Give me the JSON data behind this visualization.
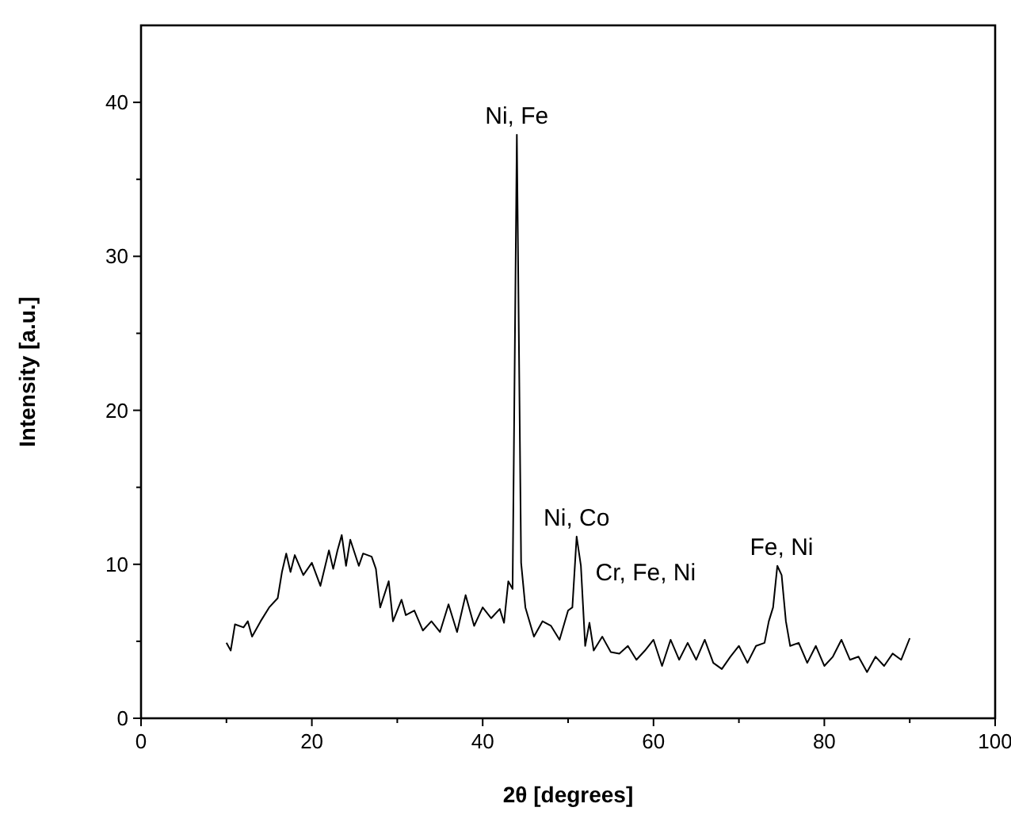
{
  "chart_data": {
    "type": "line",
    "xlabel": "2θ  [degrees]",
    "ylabel": "Intensity [a.u.]",
    "xlim": [
      0,
      100
    ],
    "xticks": [
      0,
      {
        "value": 10,
        "label": null
      },
      20,
      {
        "value": 30,
        "label": null
      },
      40,
      {
        "value": 50,
        "label": null
      },
      60,
      {
        "value": 70,
        "label": null
      },
      80,
      {
        "value": 90,
        "label": null
      },
      100
    ],
    "ylim": [
      0,
      45
    ],
    "yticks": [
      0,
      {
        "value": 5,
        "label": null
      },
      10,
      {
        "value": 15,
        "label": null
      },
      20,
      {
        "value": 25,
        "label": null
      },
      30,
      {
        "value": 35,
        "label": null
      },
      40
    ],
    "grid": false,
    "marker": "none",
    "line_style": "solid",
    "series": [
      {
        "color": "#000000",
        "x": [
          10,
          10.5,
          11,
          12,
          12.5,
          13,
          14,
          15,
          16,
          16.5,
          17,
          17.5,
          18,
          19,
          20,
          21,
          22,
          22.5,
          23,
          23.5,
          24,
          24.5,
          25.5,
          26,
          27,
          27.5,
          28,
          29,
          29.5,
          30.5,
          31,
          32,
          33,
          34,
          35,
          36,
          37,
          38,
          39,
          40,
          41,
          42,
          42.5,
          43,
          43.5,
          44,
          44.5,
          45,
          46,
          47,
          48,
          49,
          50,
          50.5,
          51,
          51.5,
          52,
          52.5,
          53,
          54,
          55,
          56,
          57,
          58,
          59,
          60,
          61,
          62,
          63,
          64,
          65,
          66,
          67,
          68,
          69,
          70,
          71,
          72,
          73,
          73.5,
          74,
          74.5,
          75,
          75.5,
          76,
          77,
          78,
          79,
          80,
          81,
          82,
          83,
          84,
          85,
          86,
          87,
          88,
          89,
          90
        ],
        "values": [
          4.9,
          4.4,
          6.1,
          5.9,
          6.3,
          5.3,
          6.3,
          7.2,
          7.8,
          9.5,
          10.7,
          9.5,
          10.6,
          9.3,
          10.1,
          8.6,
          10.9,
          9.7,
          10.9,
          11.9,
          9.9,
          11.6,
          9.9,
          10.7,
          10.5,
          9.7,
          7.2,
          8.9,
          6.3,
          7.7,
          6.7,
          7.0,
          5.7,
          6.3,
          5.6,
          7.4,
          5.6,
          8.0,
          6.0,
          7.2,
          6.5,
          7.1,
          6.2,
          8.9,
          8.4,
          37.9,
          10.1,
          7.2,
          5.3,
          6.3,
          6.0,
          5.1,
          7.0,
          7.2,
          11.8,
          9.9,
          4.7,
          6.2,
          4.4,
          5.3,
          4.3,
          4.2,
          4.7,
          3.8,
          4.4,
          5.1,
          3.4,
          5.1,
          3.8,
          4.9,
          3.8,
          5.1,
          3.6,
          3.2,
          4.0,
          4.7,
          3.6,
          4.7,
          4.9,
          6.3,
          7.2,
          9.9,
          9.3,
          6.3,
          4.7,
          4.9,
          3.6,
          4.7,
          3.4,
          4.0,
          5.1,
          3.8,
          4.0,
          3.0,
          4.0,
          3.4,
          4.2,
          3.8,
          5.2
        ]
      }
    ],
    "annotations": [
      {
        "text": "Ni, Fe",
        "x": 44,
        "y": 37.9
      },
      {
        "text": "Ni, Co",
        "x": 51,
        "y": 11.8
      },
      "Cr, Fe, Ni",
      {
        "text": "Fe, Ni",
        "x": 75,
        "y": 9.9
      }
    ]
  }
}
